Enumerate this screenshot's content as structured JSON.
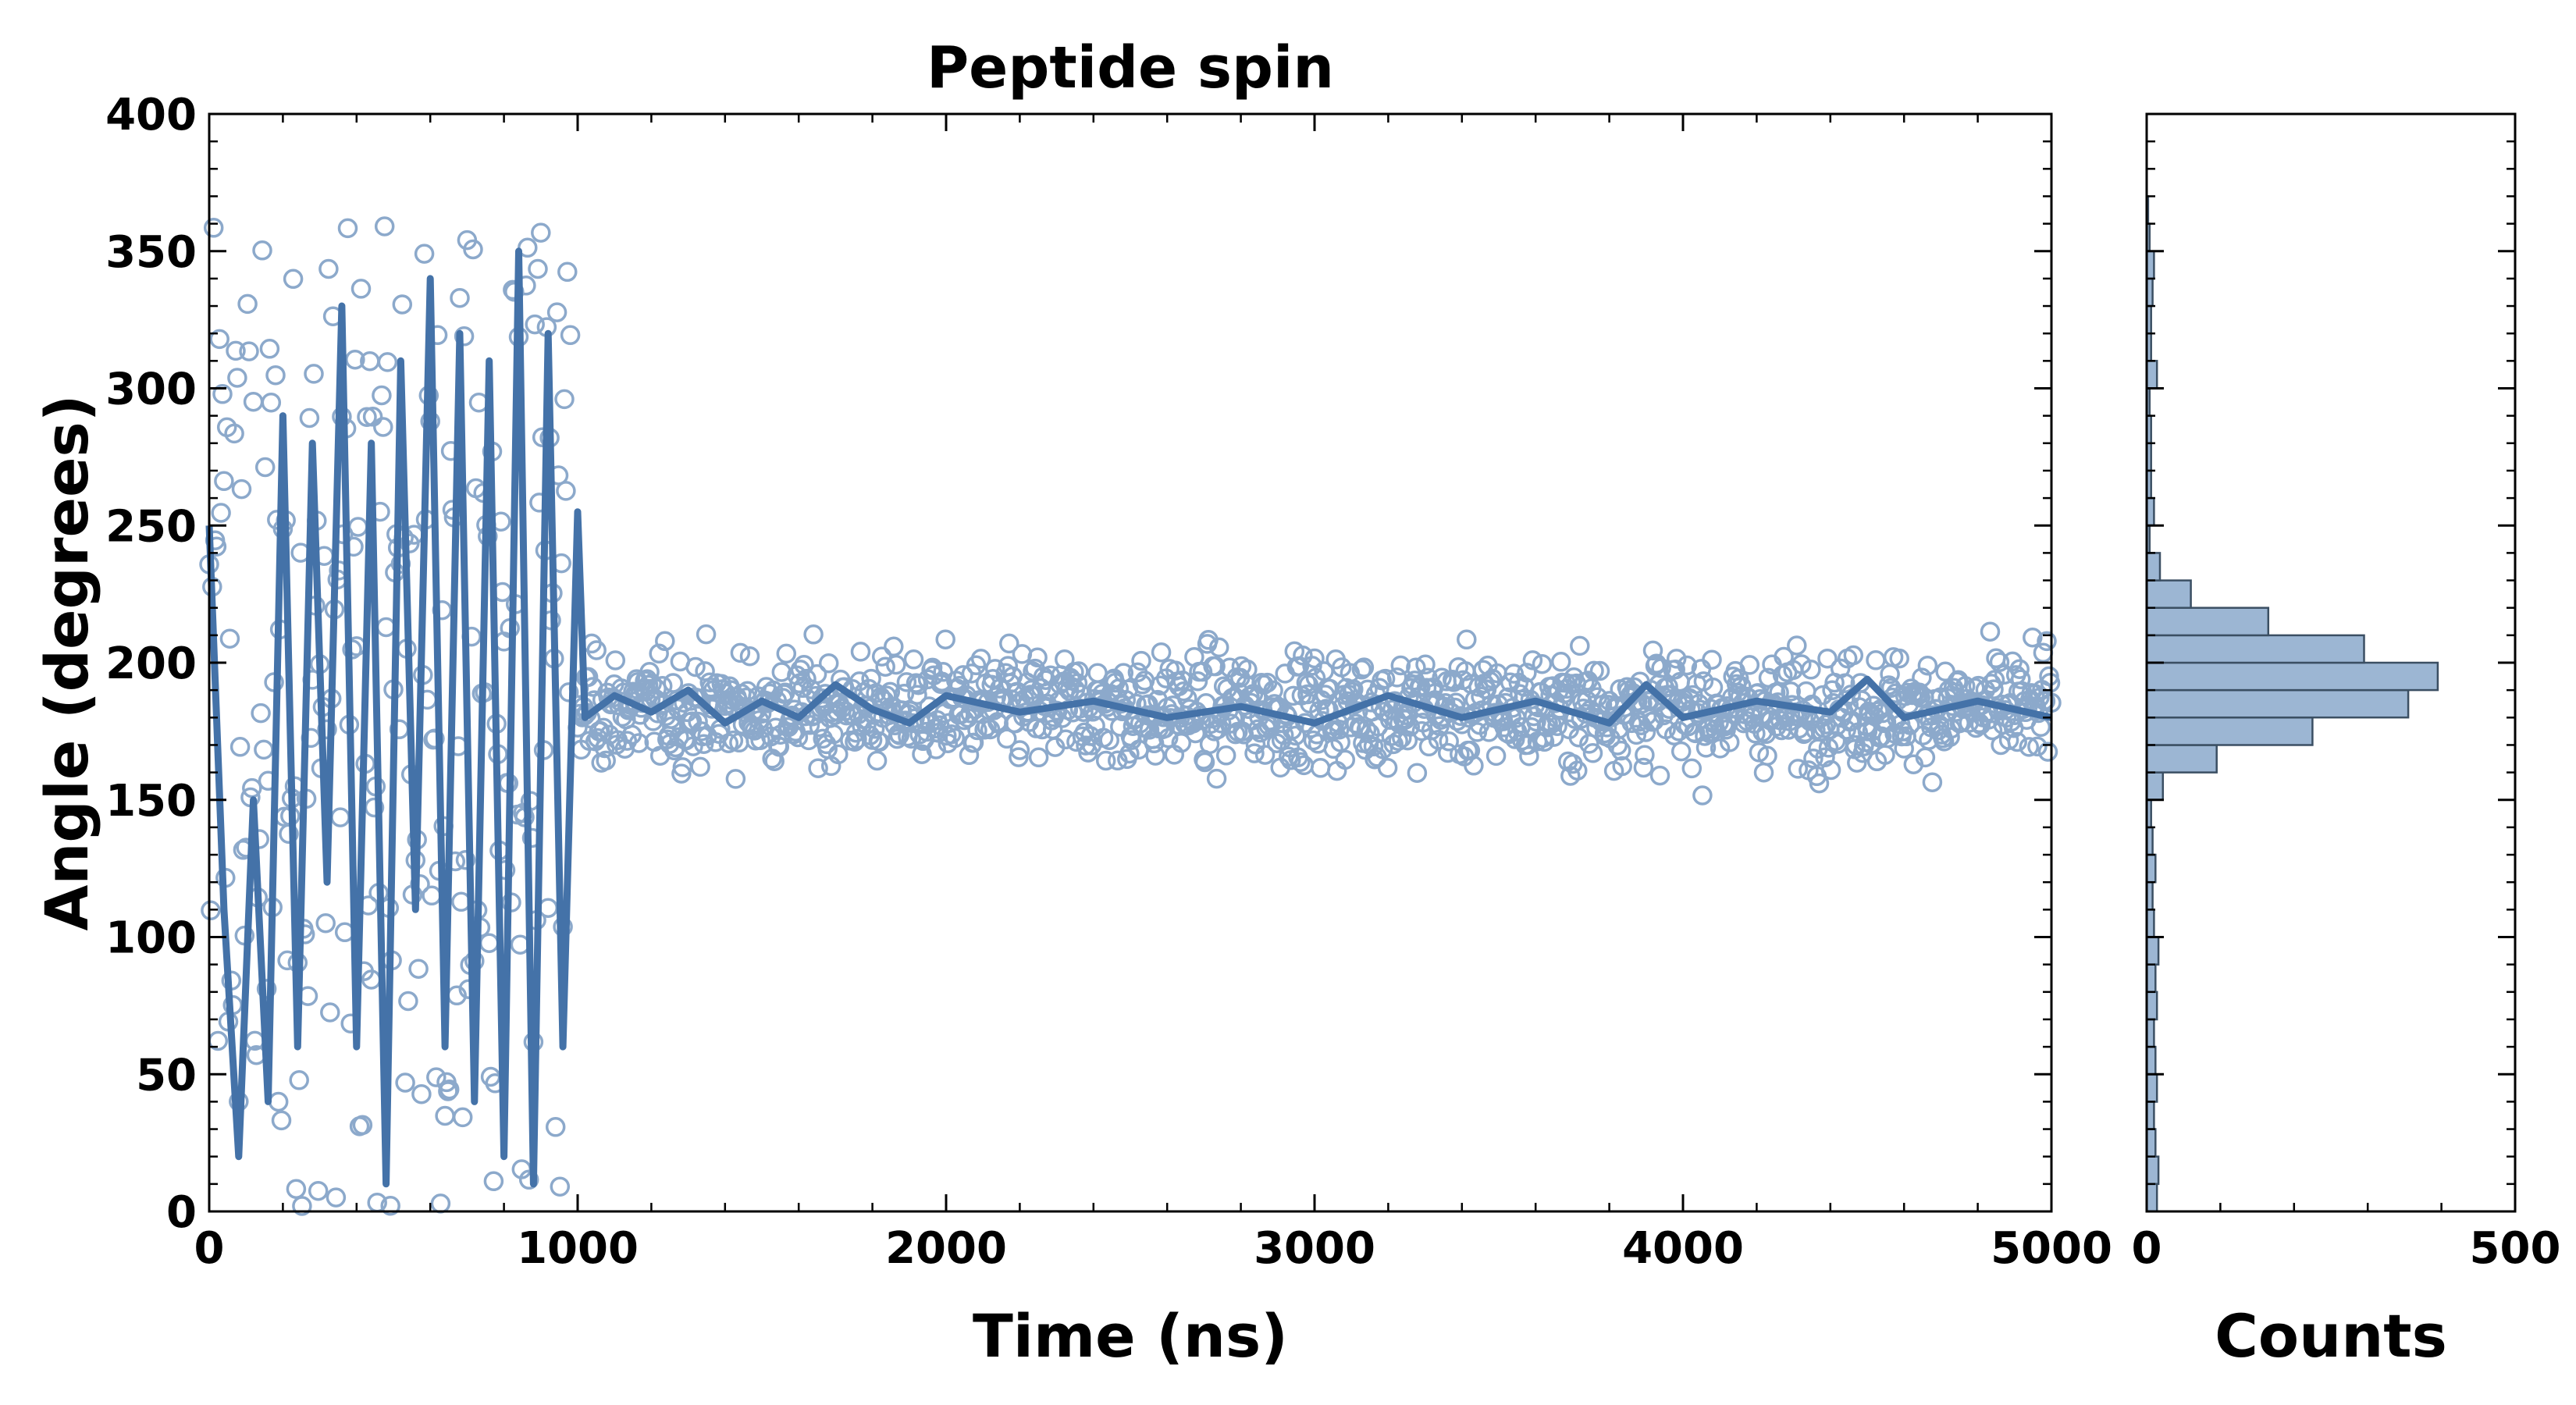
{
  "chart_data": [
    {
      "type": "scatter",
      "title": "Peptide spin",
      "xlabel": "Time (ns)",
      "ylabel": "Angle (degrees)",
      "xlim": [
        0,
        5000
      ],
      "ylim": [
        0,
        400
      ],
      "xticks": [
        0,
        1000,
        2000,
        3000,
        4000,
        5000
      ],
      "yticks": [
        0,
        50,
        100,
        150,
        200,
        250,
        300,
        350,
        400
      ],
      "grid": false,
      "legend": "none",
      "colors": {
        "scatter_edge": "#8ca9cb",
        "line": "#4472a8"
      },
      "series": [
        {
          "kind": "scatter (raw samples, open circles)",
          "segments": [
            {
              "x_range": [
                0,
                980
              ],
              "spread": [
                0,
                360
              ]
            },
            {
              "x_range": [
                1000,
                5000
              ],
              "center": 183,
              "spread": [
                145,
                230
              ]
            }
          ]
        },
        {
          "kind": "line (running average)",
          "x": [
            0,
            40,
            80,
            120,
            160,
            200,
            240,
            280,
            320,
            360,
            400,
            440,
            480,
            520,
            560,
            600,
            640,
            680,
            720,
            760,
            800,
            840,
            880,
            920,
            960,
            1000,
            1020,
            1100,
            1200,
            1300,
            1400,
            1500,
            1600,
            1700,
            1800,
            1900,
            2000,
            2200,
            2400,
            2600,
            2800,
            3000,
            3200,
            3400,
            3600,
            3800,
            3900,
            4000,
            4200,
            4400,
            4500,
            4600,
            4800,
            5000
          ],
          "y": [
            250,
            110,
            20,
            150,
            40,
            290,
            60,
            280,
            120,
            330,
            60,
            280,
            10,
            310,
            110,
            340,
            60,
            320,
            40,
            310,
            20,
            350,
            10,
            320,
            60,
            255,
            180,
            188,
            182,
            190,
            178,
            186,
            180,
            192,
            183,
            178,
            188,
            182,
            186,
            180,
            184,
            178,
            188,
            180,
            186,
            178,
            192,
            180,
            186,
            182,
            194,
            180,
            186,
            180
          ]
        }
      ]
    },
    {
      "type": "bar",
      "orientation": "horizontal",
      "title": "",
      "xlabel": "Counts",
      "ylabel": "",
      "xlim": [
        0,
        500
      ],
      "ylim": [
        0,
        400
      ],
      "xticks": [
        0,
        500
      ],
      "grid": false,
      "colors": {
        "fill": "#9cb6d3",
        "edge": "#3b4f63"
      },
      "bin_width": 10,
      "bins_start": [
        0,
        10,
        20,
        30,
        40,
        50,
        60,
        70,
        80,
        90,
        100,
        110,
        120,
        130,
        140,
        150,
        160,
        170,
        180,
        190,
        200,
        210,
        220,
        230,
        240,
        250,
        260,
        270,
        280,
        290,
        300,
        310,
        320,
        330,
        340,
        350,
        360,
        370,
        380,
        390
      ],
      "counts": [
        14,
        16,
        12,
        10,
        14,
        12,
        10,
        14,
        12,
        16,
        10,
        8,
        12,
        8,
        6,
        22,
        95,
        225,
        355,
        395,
        295,
        165,
        60,
        18,
        4,
        10,
        6,
        6,
        6,
        4,
        14,
        6,
        6,
        8,
        10,
        4,
        2,
        0,
        0,
        0
      ]
    }
  ]
}
